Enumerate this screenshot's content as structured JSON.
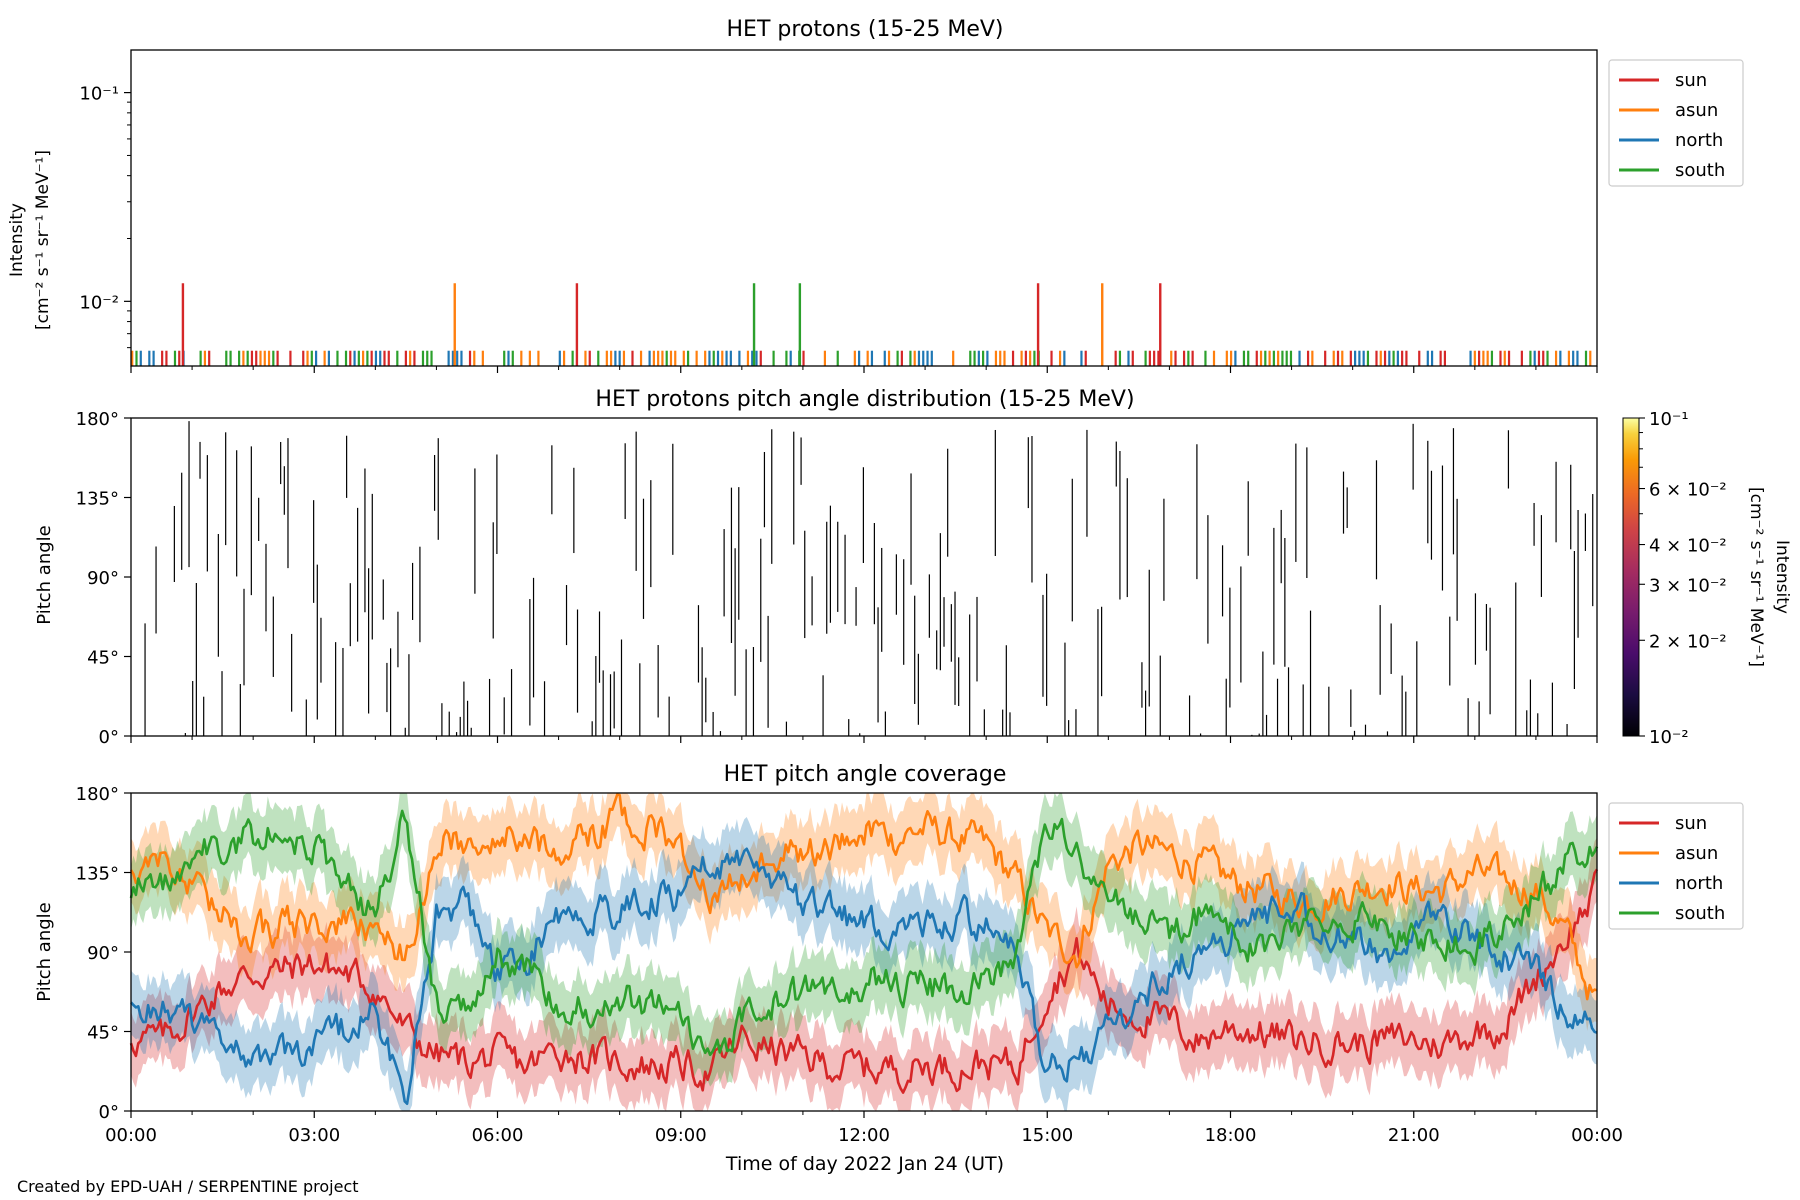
{
  "footer": {
    "credit": "Created by EPD-UAH / SERPENTINE project"
  },
  "colors": {
    "sun": "#d62728",
    "asun": "#ff7f0e",
    "north": "#1f77b4",
    "south": "#2ca02c"
  },
  "chart_data": [
    {
      "type": "line",
      "title": "HET protons (15-25 MeV)",
      "ylabel_line1": "Intensity",
      "ylabel_line2": "[cm⁻² s⁻¹ sr⁻¹ MeV⁻¹]",
      "yscale": "log",
      "ylim": [
        0.0049,
        0.16
      ],
      "yticks": [
        {
          "value": 0.01,
          "label": "10⁻²"
        },
        {
          "value": 0.1,
          "label": "10⁻¹"
        }
      ],
      "xlim": [
        0,
        24
      ],
      "legend": {
        "placement": "outside-top-right",
        "entries": [
          "sun",
          "asun",
          "north",
          "south"
        ]
      },
      "baseline_level": 0.0058,
      "spike_level": 0.0122,
      "spikes": [
        {
          "series": "sun",
          "x": 0.85
        },
        {
          "series": "asun",
          "x": 5.3
        },
        {
          "series": "sun",
          "x": 7.3
        },
        {
          "series": "south",
          "x": 10.2
        },
        {
          "series": "south",
          "x": 10.95
        },
        {
          "series": "sun",
          "x": 14.85
        },
        {
          "series": "asun",
          "x": 15.9
        },
        {
          "series": "sun",
          "x": 16.85
        }
      ]
    },
    {
      "type": "heatmap",
      "title": "HET protons pitch angle distribution (15-25 MeV)",
      "ylabel": "Pitch angle",
      "ylim": [
        0,
        180
      ],
      "yticks": [
        "0°",
        "45°",
        "90°",
        "135°",
        "180°"
      ],
      "xlim": [
        0,
        24
      ],
      "colorbar": {
        "label_line1": "Intensity",
        "label_line2": "[cm⁻² s⁻¹ sr⁻¹ MeV⁻¹]",
        "scale": "log",
        "range": [
          0.01,
          0.1
        ],
        "ticks": [
          {
            "value": 0.1,
            "label": "10⁻¹"
          },
          {
            "value": 0.06,
            "label": "6 × 10⁻²"
          },
          {
            "value": 0.04,
            "label": "4 × 10⁻²"
          },
          {
            "value": 0.03,
            "label": "3 × 10⁻²"
          },
          {
            "value": 0.02,
            "label": "2 × 10⁻²"
          },
          {
            "value": 0.01,
            "label": "10⁻²"
          }
        ]
      }
    },
    {
      "type": "line",
      "title": "HET pitch angle coverage",
      "ylabel": "Pitch angle",
      "xlabel": "Time of day 2022 Jan 24 (UT)",
      "ylim": [
        0,
        180
      ],
      "yticks": [
        "0°",
        "45°",
        "90°",
        "135°",
        "180°"
      ],
      "xlim": [
        0,
        24
      ],
      "xticks": [
        "00:00",
        "03:00",
        "06:00",
        "09:00",
        "12:00",
        "15:00",
        "18:00",
        "21:00",
        "00:00"
      ],
      "legend": {
        "placement": "outside-top-right",
        "entries": [
          "sun",
          "asun",
          "north",
          "south"
        ]
      },
      "band_halfwidth": 18,
      "series": [
        {
          "name": "sun",
          "x": [
            0,
            0.5,
            1,
            1.5,
            2,
            2.5,
            3,
            3.5,
            4,
            4.5,
            5,
            5.5,
            6,
            6.5,
            7,
            7.5,
            8,
            8.5,
            9,
            9.5,
            10,
            10.5,
            11,
            11.5,
            12,
            12.5,
            13,
            13.5,
            14,
            14.5,
            15,
            15.5,
            16,
            16.5,
            17,
            17.5,
            18,
            18.5,
            19,
            19.5,
            20,
            20.5,
            21,
            21.5,
            22,
            22.5,
            23,
            23.5,
            24
          ],
          "y": [
            42,
            40,
            55,
            70,
            78,
            80,
            84,
            78,
            70,
            45,
            32,
            28,
            30,
            25,
            35,
            30,
            28,
            26,
            26,
            22,
            40,
            35,
            30,
            26,
            25,
            24,
            26,
            25,
            28,
            24,
            70,
            90,
            60,
            55,
            50,
            40,
            48,
            45,
            40,
            40,
            38,
            40,
            40,
            38,
            45,
            50,
            75,
            100,
            125
          ]
        },
        {
          "name": "asun",
          "x": [
            0,
            0.5,
            1,
            1.5,
            2,
            2.5,
            3,
            3.5,
            4,
            4.5,
            5,
            5.5,
            6,
            6.5,
            7,
            7.5,
            8,
            8.5,
            9,
            9.5,
            10,
            10.5,
            11,
            11.5,
            12,
            12.5,
            13,
            13.5,
            14,
            14.5,
            15,
            15.5,
            16,
            16.5,
            17,
            17.5,
            18,
            18.5,
            19,
            19.5,
            20,
            20.5,
            21,
            21.5,
            22,
            22.5,
            23,
            23.5,
            24
          ],
          "y": [
            135,
            145,
            125,
            110,
            100,
            105,
            105,
            105,
            100,
            90,
            150,
            155,
            160,
            150,
            150,
            155,
            165,
            160,
            150,
            120,
            130,
            150,
            145,
            150,
            160,
            155,
            160,
            155,
            150,
            130,
            100,
            90,
            140,
            150,
            145,
            140,
            130,
            125,
            120,
            120,
            125,
            130,
            125,
            125,
            135,
            130,
            125,
            100,
            60
          ]
        },
        {
          "name": "north",
          "x": [
            0,
            0.5,
            1,
            1.5,
            2,
            2.5,
            3,
            3.5,
            4,
            4.5,
            5,
            5.5,
            6,
            6.5,
            7,
            7.5,
            8,
            8.5,
            9,
            9.5,
            10,
            10.5,
            11,
            11.5,
            12,
            12.5,
            13,
            13.5,
            14,
            14.5,
            15,
            15.5,
            16,
            16.5,
            17,
            17.5,
            18,
            18.5,
            19,
            19.5,
            20,
            20.5,
            21,
            21.5,
            22,
            22.5,
            23,
            23.5,
            24
          ],
          "y": [
            55,
            60,
            50,
            40,
            30,
            30,
            35,
            45,
            55,
            10,
            110,
            120,
            80,
            90,
            110,
            110,
            115,
            120,
            120,
            145,
            140,
            130,
            115,
            110,
            108,
            105,
            110,
            110,
            105,
            90,
            20,
            30,
            45,
            60,
            80,
            90,
            100,
            110,
            120,
            100,
            95,
            90,
            100,
            110,
            95,
            90,
            80,
            60,
            40
          ]
        },
        {
          "name": "south",
          "x": [
            0,
            0.5,
            1,
            1.5,
            2,
            2.5,
            3,
            3.5,
            4,
            4.5,
            5,
            5.5,
            6,
            6.5,
            7,
            7.5,
            8,
            8.5,
            9,
            9.5,
            10,
            10.5,
            11,
            11.5,
            12,
            12.5,
            13,
            13.5,
            14,
            14.5,
            15,
            15.5,
            16,
            16.5,
            17,
            17.5,
            18,
            18.5,
            19,
            19.5,
            20,
            20.5,
            21,
            21.5,
            22,
            22.5,
            23,
            23.5,
            24
          ],
          "y": [
            125,
            130,
            145,
            150,
            155,
            158,
            150,
            130,
            110,
            170,
            60,
            55,
            90,
            80,
            60,
            60,
            65,
            60,
            60,
            20,
            50,
            60,
            65,
            70,
            75,
            70,
            70,
            70,
            75,
            90,
            160,
            150,
            120,
            110,
            100,
            110,
            100,
            90,
            100,
            110,
            110,
            100,
            100,
            100,
            90,
            110,
            120,
            140,
            145
          ]
        }
      ]
    }
  ]
}
